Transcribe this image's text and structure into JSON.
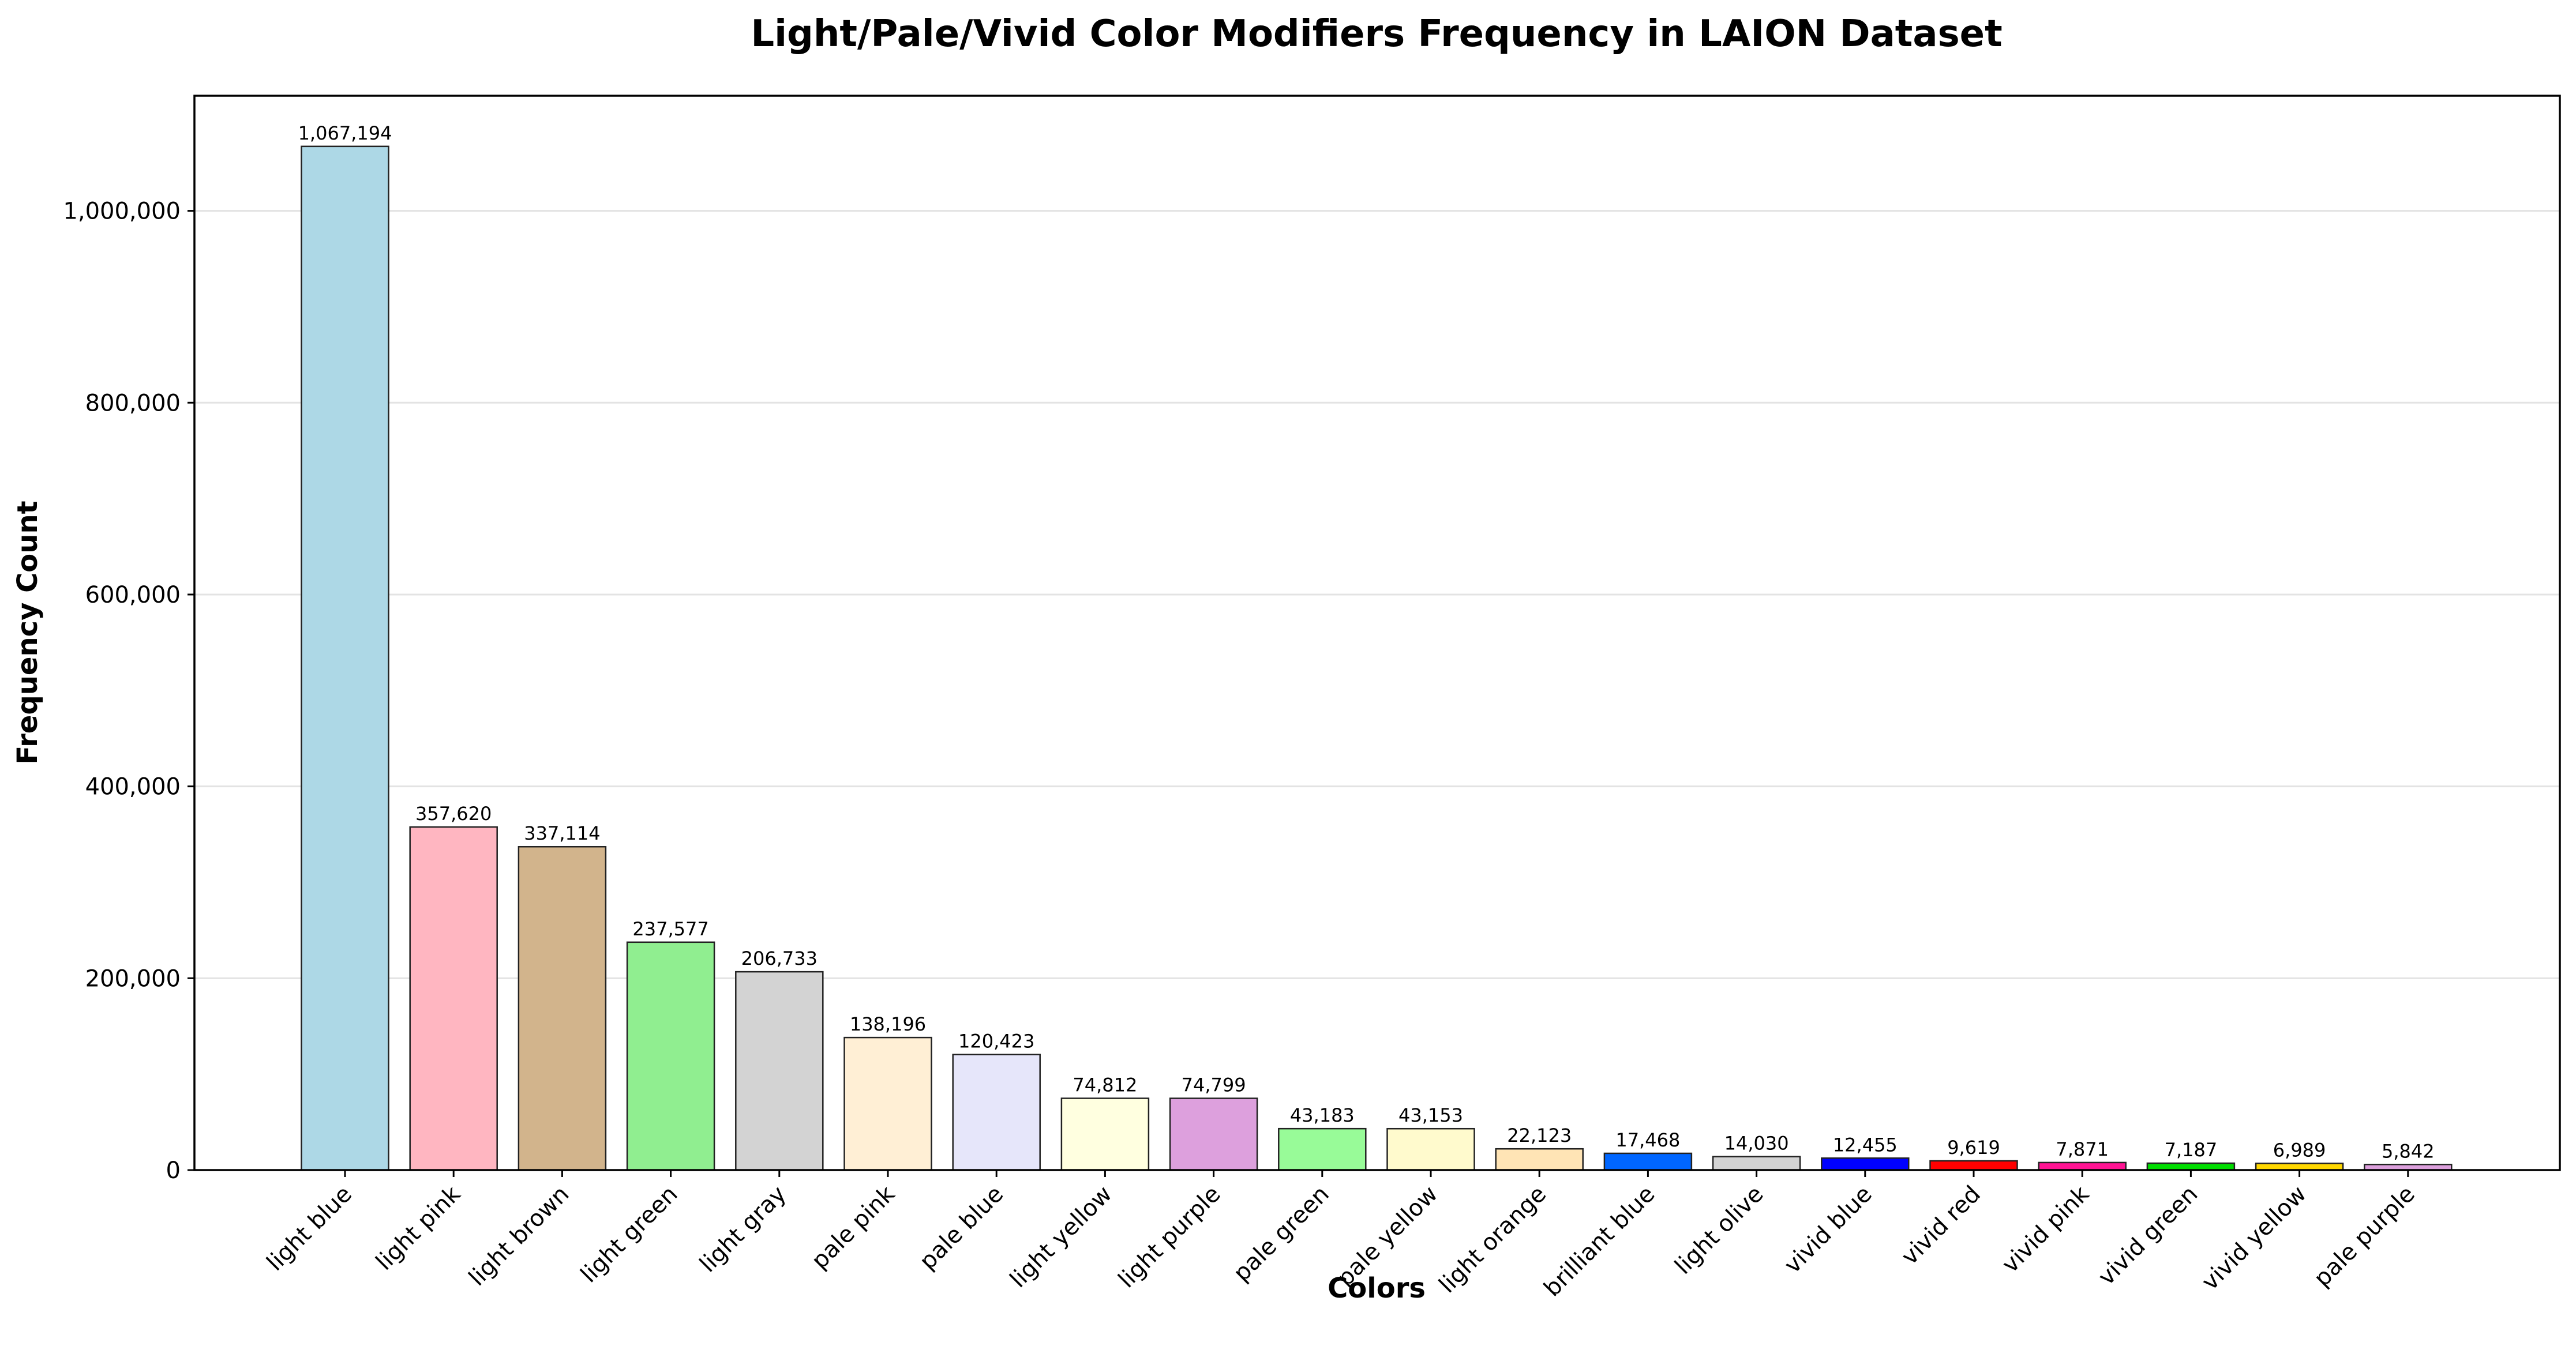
{
  "chart_data": {
    "type": "bar",
    "title": "Light/Pale/Vivid Color Modifiers Frequency in LAION Dataset",
    "xlabel": "Colors",
    "ylabel": "Frequency Count",
    "ylim": [
      0,
      1120000
    ],
    "yticks": [
      0,
      200000,
      400000,
      600000,
      800000,
      1000000
    ],
    "ytick_labels": [
      "0",
      "200,000",
      "400,000",
      "600,000",
      "800,000",
      "1,000,000"
    ],
    "grid": "y",
    "categories": [
      "light blue",
      "light pink",
      "light brown",
      "light green",
      "light gray",
      "pale pink",
      "pale blue",
      "light yellow",
      "light purple",
      "pale green",
      "pale yellow",
      "light orange",
      "brilliant blue",
      "light olive",
      "vivid blue",
      "vivid red",
      "vivid pink",
      "vivid green",
      "vivid yellow",
      "pale purple"
    ],
    "values": [
      1067194,
      357620,
      337114,
      237577,
      206733,
      138196,
      120423,
      74812,
      74799,
      43183,
      43153,
      22123,
      17468,
      14030,
      12455,
      9619,
      7871,
      7187,
      6989,
      5842
    ],
    "value_labels": [
      "1,067,194",
      "357,620",
      "337,114",
      "237,577",
      "206,733",
      "138,196",
      "120,423",
      "74,812",
      "74,799",
      "43,183",
      "43,153",
      "22,123",
      "17,468",
      "14,030",
      "12,455",
      "9,619",
      "7,871",
      "7,187",
      "6,989",
      "5,842"
    ],
    "colors": [
      "#add8e6",
      "#ffb6c1",
      "#d2b48c",
      "#90ee90",
      "#d3d3d3",
      "#ffefd5",
      "#e6e6fa",
      "#ffffe0",
      "#dda0dd",
      "#98fb98",
      "#fffacd",
      "#ffe4b5",
      "#0066ff",
      "#d3d3d3",
      "#0000ff",
      "#ff0000",
      "#ff1493",
      "#00dd00",
      "#ffd700",
      "#dda0dd"
    ]
  }
}
